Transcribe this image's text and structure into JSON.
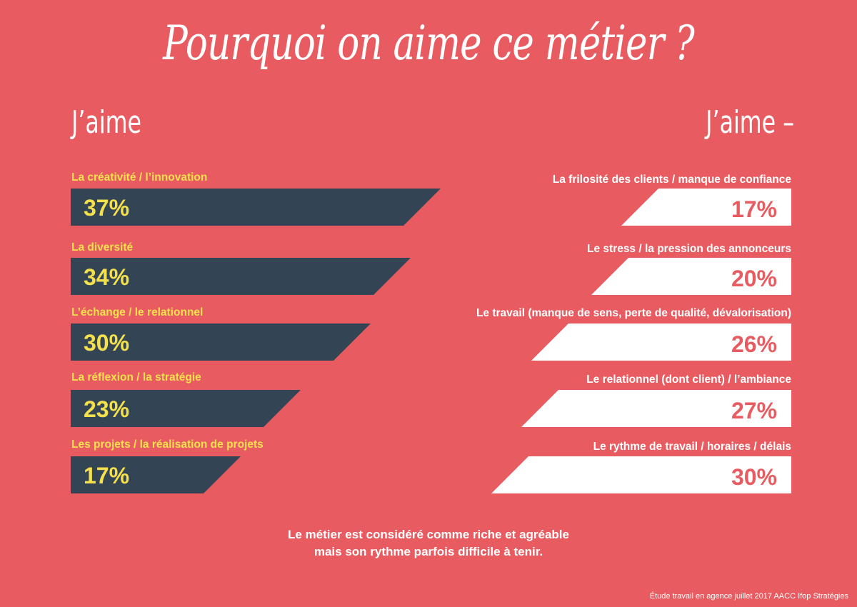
{
  "title": "Pourquoi on aime ce métier ?",
  "left_column_title": "J’aime",
  "right_column_title": "J’aime –",
  "colors": {
    "background": "#e85c61",
    "left_bar": "#334454",
    "left_text": "#f4e04d",
    "right_bar": "#ffffff",
    "right_text": "#e85c61"
  },
  "chart_data": [
    {
      "type": "bar",
      "title": "J’aime",
      "categories": [
        "La créativité / l’innovation",
        "La diversité",
        "L’échange / le relationnel",
        "La réflexion / la stratégie",
        "Les projets / la réalisation de projets"
      ],
      "values": [
        37,
        34,
        30,
        23,
        17
      ],
      "value_labels": [
        "37%",
        "34%",
        "30%",
        "23%",
        "17%"
      ]
    },
    {
      "type": "bar",
      "title": "J’aime –",
      "categories": [
        "La frilosité des clients / manque de confiance",
        "Le stress / la pression des annonceurs",
        "Le travail (manque de sens, perte de qualité, dévalorisation)",
        "Le relationnel (dont client) / l’ambiance",
        "Le rythme de travail / horaires / délais"
      ],
      "values": [
        17,
        20,
        26,
        27,
        30
      ],
      "value_labels": [
        "17%",
        "20%",
        "26%",
        "27%",
        "30%"
      ]
    }
  ],
  "summary_line1": "Le métier est considéré comme riche et agréable",
  "summary_line2": "mais son rythme parfois difficile à tenir.",
  "source": "Étude travail en agence juillet 2017 AACC Ifop Stratégies"
}
